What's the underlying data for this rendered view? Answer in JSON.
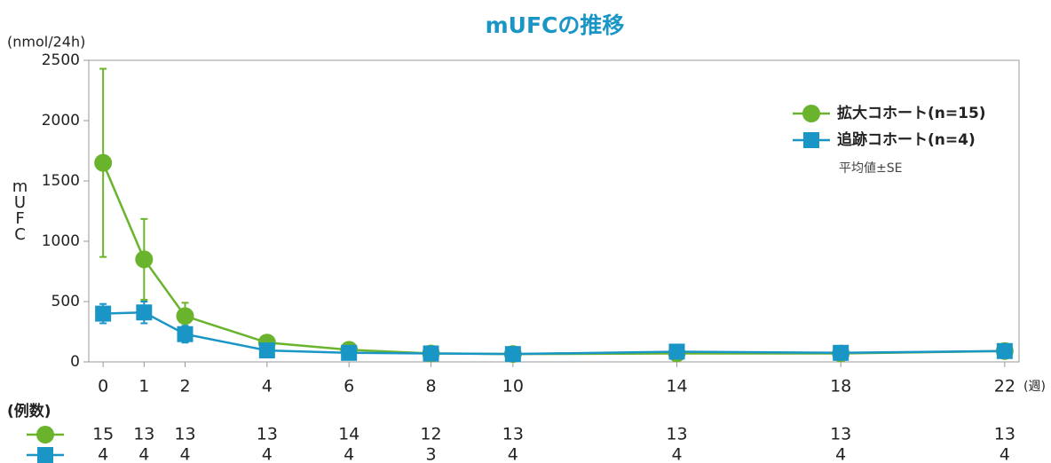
{
  "chart_data": {
    "type": "line",
    "title": "mUFCの推移",
    "y_unit": "(nmol/24h)",
    "y_label": "mUFC",
    "x_unit": "(週)",
    "x": [
      0,
      1,
      2,
      4,
      6,
      8,
      10,
      14,
      18,
      22
    ],
    "xlim": [
      -0.35,
      22.35
    ],
    "xticks": [
      0,
      1,
      2,
      4,
      6,
      8,
      10,
      14,
      18,
      22
    ],
    "ylim": [
      0,
      2500
    ],
    "yticks": [
      0,
      500,
      1000,
      1500,
      2000,
      2500
    ],
    "legend_position": "upper right",
    "legend_note": "平均値±SE",
    "counts_label": "(例数)",
    "series": [
      {
        "name": "拡大コホート(n=15)",
        "color": "#6ab42d",
        "marker": "circle",
        "values": [
          1650,
          850,
          380,
          160,
          100,
          70,
          65,
          70,
          70,
          90
        ],
        "errors": [
          780,
          335,
          110,
          20,
          15,
          10,
          10,
          10,
          10,
          15
        ],
        "counts": [
          15,
          13,
          13,
          13,
          14,
          12,
          13,
          13,
          13,
          13
        ]
      },
      {
        "name": "追跡コホート(n=4)",
        "color": "#1a96c6",
        "marker": "square",
        "values": [
          400,
          410,
          230,
          95,
          75,
          70,
          65,
          85,
          75,
          90
        ],
        "errors": [
          80,
          90,
          70,
          10,
          10,
          10,
          10,
          10,
          10,
          10
        ],
        "counts": [
          4,
          4,
          4,
          4,
          4,
          3,
          4,
          4,
          4,
          4
        ]
      }
    ]
  }
}
